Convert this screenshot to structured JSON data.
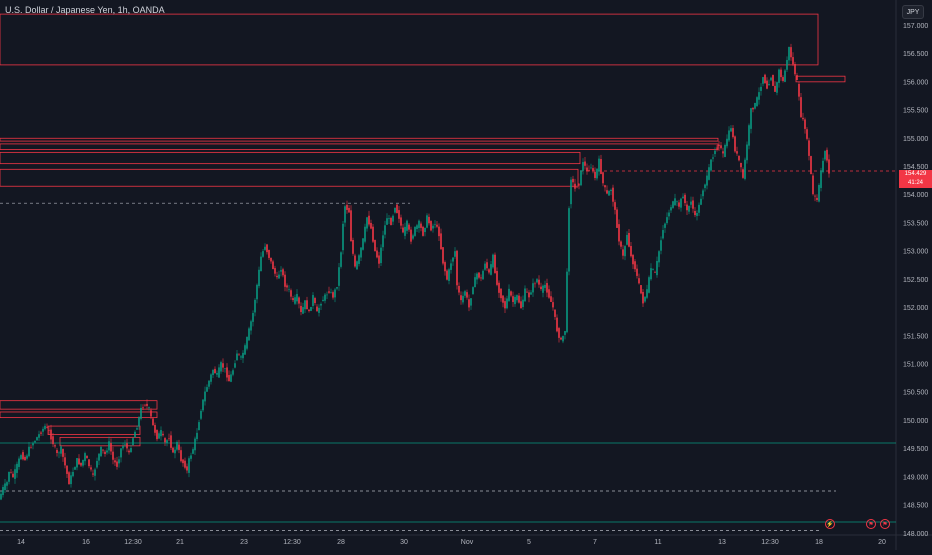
{
  "header": {
    "title": "U.S. Dollar / Japanese Yen, 1h, OANDA",
    "currency_label": "JPY"
  },
  "price_tag": {
    "price": "154.429",
    "countdown": "41:24"
  },
  "event_icons": [
    "lightning-icon",
    "flag-icon",
    "flag-icon"
  ],
  "colors": {
    "up": "#089981",
    "down": "#f23645",
    "background": "#131722",
    "axis_text": "#b2b5be"
  },
  "chart_data": {
    "type": "candlestick",
    "title": "U.S. Dollar / Japanese Yen, 1h, OANDA",
    "x_ticks": [
      "14",
      "16",
      "12:30",
      "21",
      "23",
      "12:30",
      "28",
      "30",
      "Nov",
      "5",
      "7",
      "11",
      "13",
      "12:30",
      "18",
      "20"
    ],
    "y_ticks": [
      "157.000",
      "156.500",
      "156.000",
      "155.500",
      "155.000",
      "154.500",
      "154.000",
      "153.500",
      "153.000",
      "152.500",
      "152.000",
      "151.500",
      "151.000",
      "150.500",
      "150.000",
      "149.500",
      "149.000",
      "148.500",
      "148.000"
    ],
    "ylim": [
      147.97,
      157.45
    ],
    "path": [
      [
        0,
        148.6
      ],
      [
        4,
        148.8
      ],
      [
        8,
        148.9
      ],
      [
        10,
        149.1
      ],
      [
        14,
        149.0
      ],
      [
        18,
        149.2
      ],
      [
        22,
        149.4
      ],
      [
        26,
        149.3
      ],
      [
        30,
        149.5
      ],
      [
        34,
        149.6
      ],
      [
        38,
        149.7
      ],
      [
        42,
        149.8
      ],
      [
        46,
        149.9
      ],
      [
        50,
        149.8
      ],
      [
        54,
        149.6
      ],
      [
        58,
        149.4
      ],
      [
        62,
        149.5
      ],
      [
        66,
        149.2
      ],
      [
        70,
        148.9
      ],
      [
        74,
        149.1
      ],
      [
        78,
        149.3
      ],
      [
        82,
        149.2
      ],
      [
        86,
        149.4
      ],
      [
        90,
        149.2
      ],
      [
        94,
        149.0
      ],
      [
        98,
        149.3
      ],
      [
        102,
        149.5
      ],
      [
        106,
        149.4
      ],
      [
        110,
        149.6
      ],
      [
        114,
        149.3
      ],
      [
        118,
        149.2
      ],
      [
        122,
        149.5
      ],
      [
        126,
        149.6
      ],
      [
        130,
        149.4
      ],
      [
        134,
        149.7
      ],
      [
        138,
        149.9
      ],
      [
        142,
        150.2
      ],
      [
        146,
        150.3
      ],
      [
        150,
        150.2
      ],
      [
        154,
        149.9
      ],
      [
        158,
        149.7
      ],
      [
        162,
        149.8
      ],
      [
        166,
        149.6
      ],
      [
        170,
        149.7
      ],
      [
        174,
        149.4
      ],
      [
        178,
        149.6
      ],
      [
        182,
        149.3
      ],
      [
        186,
        149.2
      ],
      [
        188,
        149.1
      ],
      [
        190,
        149.3
      ],
      [
        194,
        149.5
      ],
      [
        198,
        149.8
      ],
      [
        202,
        150.2
      ],
      [
        206,
        150.5
      ],
      [
        210,
        150.7
      ],
      [
        214,
        150.9
      ],
      [
        218,
        150.8
      ],
      [
        222,
        151.0
      ],
      [
        226,
        150.9
      ],
      [
        230,
        150.7
      ],
      [
        234,
        150.9
      ],
      [
        238,
        151.2
      ],
      [
        242,
        151.1
      ],
      [
        246,
        151.3
      ],
      [
        250,
        151.6
      ],
      [
        254,
        151.9
      ],
      [
        258,
        152.4
      ],
      [
        262,
        152.9
      ],
      [
        266,
        153.1
      ],
      [
        270,
        152.9
      ],
      [
        274,
        152.7
      ],
      [
        278,
        152.5
      ],
      [
        282,
        152.7
      ],
      [
        286,
        152.4
      ],
      [
        290,
        152.3
      ],
      [
        294,
        152.1
      ],
      [
        298,
        152.2
      ],
      [
        302,
        151.9
      ],
      [
        306,
        152.1
      ],
      [
        310,
        151.9
      ],
      [
        314,
        152.2
      ],
      [
        318,
        151.9
      ],
      [
        322,
        152.1
      ],
      [
        326,
        152.2
      ],
      [
        330,
        152.3
      ],
      [
        334,
        152.2
      ],
      [
        338,
        152.4
      ],
      [
        342,
        153.0
      ],
      [
        344,
        153.5
      ],
      [
        346,
        153.8
      ],
      [
        350,
        153.7
      ],
      [
        352,
        153.2
      ],
      [
        356,
        152.7
      ],
      [
        360,
        152.9
      ],
      [
        364,
        153.2
      ],
      [
        368,
        153.6
      ],
      [
        372,
        153.4
      ],
      [
        376,
        153.0
      ],
      [
        380,
        152.8
      ],
      [
        384,
        153.3
      ],
      [
        388,
        153.6
      ],
      [
        392,
        153.5
      ],
      [
        396,
        153.8
      ],
      [
        400,
        153.6
      ],
      [
        404,
        153.3
      ],
      [
        408,
        153.5
      ],
      [
        412,
        153.2
      ],
      [
        416,
        153.4
      ],
      [
        420,
        153.5
      ],
      [
        424,
        153.3
      ],
      [
        428,
        153.6
      ],
      [
        432,
        153.4
      ],
      [
        436,
        153.5
      ],
      [
        440,
        153.3
      ],
      [
        444,
        152.8
      ],
      [
        448,
        152.5
      ],
      [
        452,
        152.8
      ],
      [
        456,
        153.0
      ],
      [
        458,
        152.4
      ],
      [
        462,
        152.1
      ],
      [
        466,
        152.3
      ],
      [
        470,
        152.0
      ],
      [
        474,
        152.4
      ],
      [
        478,
        152.6
      ],
      [
        482,
        152.5
      ],
      [
        486,
        152.8
      ],
      [
        490,
        152.6
      ],
      [
        494,
        152.9
      ],
      [
        498,
        152.4
      ],
      [
        502,
        152.2
      ],
      [
        506,
        152.0
      ],
      [
        510,
        152.3
      ],
      [
        514,
        152.1
      ],
      [
        518,
        152.2
      ],
      [
        522,
        152.0
      ],
      [
        526,
        152.3
      ],
      [
        530,
        152.2
      ],
      [
        534,
        152.4
      ],
      [
        538,
        152.5
      ],
      [
        542,
        152.3
      ],
      [
        546,
        152.4
      ],
      [
        550,
        152.2
      ],
      [
        554,
        152.0
      ],
      [
        558,
        151.6
      ],
      [
        562,
        151.4
      ],
      [
        566,
        151.6
      ],
      [
        568,
        152.6
      ],
      [
        570,
        153.8
      ],
      [
        572,
        154.3
      ],
      [
        576,
        154.1
      ],
      [
        580,
        154.2
      ],
      [
        584,
        154.6
      ],
      [
        588,
        154.4
      ],
      [
        592,
        154.5
      ],
      [
        596,
        154.3
      ],
      [
        600,
        154.6
      ],
      [
        604,
        154.2
      ],
      [
        608,
        154.0
      ],
      [
        612,
        154.1
      ],
      [
        616,
        153.7
      ],
      [
        620,
        153.2
      ],
      [
        624,
        152.9
      ],
      [
        628,
        153.3
      ],
      [
        632,
        152.9
      ],
      [
        636,
        152.7
      ],
      [
        640,
        152.4
      ],
      [
        644,
        152.1
      ],
      [
        648,
        152.3
      ],
      [
        652,
        152.7
      ],
      [
        656,
        152.6
      ],
      [
        660,
        153.0
      ],
      [
        664,
        153.4
      ],
      [
        668,
        153.6
      ],
      [
        672,
        153.8
      ],
      [
        676,
        153.9
      ],
      [
        680,
        153.8
      ],
      [
        684,
        154.0
      ],
      [
        688,
        153.7
      ],
      [
        692,
        153.9
      ],
      [
        696,
        153.6
      ],
      [
        700,
        153.8
      ],
      [
        704,
        154.1
      ],
      [
        708,
        154.3
      ],
      [
        712,
        154.6
      ],
      [
        716,
        154.8
      ],
      [
        720,
        154.9
      ],
      [
        724,
        154.7
      ],
      [
        728,
        155.0
      ],
      [
        732,
        155.2
      ],
      [
        736,
        154.8
      ],
      [
        740,
        154.6
      ],
      [
        744,
        154.3
      ],
      [
        748,
        154.9
      ],
      [
        752,
        155.5
      ],
      [
        756,
        155.6
      ],
      [
        760,
        155.8
      ],
      [
        764,
        156.1
      ],
      [
        768,
        155.9
      ],
      [
        772,
        156.1
      ],
      [
        776,
        155.8
      ],
      [
        780,
        156.2
      ],
      [
        784,
        156.0
      ],
      [
        788,
        156.4
      ],
      [
        790,
        156.6
      ],
      [
        794,
        156.3
      ],
      [
        798,
        156.0
      ],
      [
        802,
        155.4
      ],
      [
        806,
        155.2
      ],
      [
        810,
        154.7
      ],
      [
        814,
        154.0
      ],
      [
        818,
        153.9
      ],
      [
        822,
        154.4
      ],
      [
        826,
        154.8
      ],
      [
        830,
        154.4
      ]
    ],
    "zones": [
      {
        "type": "box",
        "x": [
          0,
          818
        ],
        "y": [
          156.3,
          157.2
        ],
        "color": "#f23645"
      },
      {
        "type": "box",
        "x": [
          796,
          845
        ],
        "y": [
          156.0,
          156.1
        ],
        "color": "#f23645"
      },
      {
        "type": "box",
        "x": [
          0,
          718
        ],
        "y": [
          154.95,
          155.0
        ],
        "color": "#f23645"
      },
      {
        "type": "box",
        "x": [
          0,
          718
        ],
        "y": [
          154.8,
          154.9
        ],
        "color": "#f23645"
      },
      {
        "type": "box",
        "x": [
          0,
          580
        ],
        "y": [
          154.55,
          154.75
        ],
        "color": "#f23645"
      },
      {
        "type": "box",
        "x": [
          0,
          578
        ],
        "y": [
          154.15,
          154.45
        ],
        "color": "#f23645"
      },
      {
        "type": "box",
        "x": [
          0,
          157
        ],
        "y": [
          150.2,
          150.35
        ],
        "color": "#f23645"
      },
      {
        "type": "box",
        "x": [
          0,
          157
        ],
        "y": [
          150.05,
          150.15
        ],
        "color": "#f23645"
      },
      {
        "type": "box",
        "x": [
          48,
          140
        ],
        "y": [
          149.75,
          149.9
        ],
        "color": "#f23645"
      },
      {
        "type": "box",
        "x": [
          60,
          140
        ],
        "y": [
          149.55,
          149.7
        ],
        "color": "#f23645"
      },
      {
        "type": "hline",
        "x": [
          0,
          410
        ],
        "y": [
          153.85,
          153.85
        ],
        "color": "#b2b5be",
        "dash": true
      },
      {
        "type": "hline",
        "x": [
          0,
          836
        ],
        "y": [
          148.75,
          148.75
        ],
        "color": "#b2b5be",
        "dash": true
      },
      {
        "type": "hline",
        "x": [
          0,
          820
        ],
        "y": [
          148.05,
          148.05
        ],
        "color": "#b2b5be",
        "dash": true
      },
      {
        "type": "hline",
        "x": [
          0,
          896
        ],
        "y": [
          149.6,
          149.6
        ],
        "color": "#089981",
        "dash": false
      },
      {
        "type": "hline",
        "x": [
          0,
          896
        ],
        "y": [
          148.2,
          148.2
        ],
        "color": "#089981",
        "dash": false
      },
      {
        "type": "hline",
        "x": [
          580,
          896
        ],
        "y": [
          154.42,
          154.42
        ],
        "color": "#f23645",
        "dash": true
      }
    ]
  }
}
